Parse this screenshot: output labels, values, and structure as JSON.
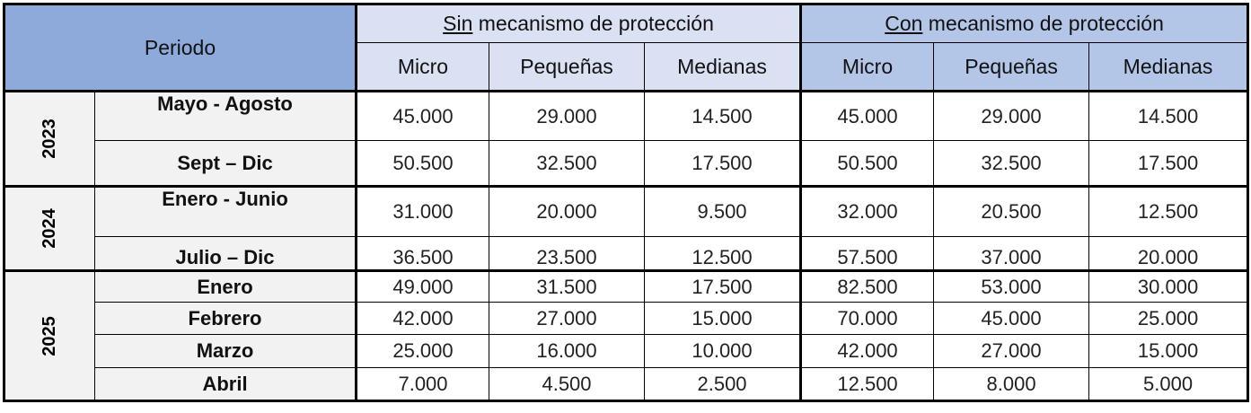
{
  "header": {
    "periodo": "Periodo",
    "sin_underlined": "Sin",
    "sin_rest": " mecanismo de protección",
    "con_underlined": "Con",
    "con_rest": " mecanismo de protección",
    "cols": [
      "Micro",
      "Pequeñas",
      "Medianas",
      "Micro",
      "Pequeñas",
      "Medianas"
    ]
  },
  "years": [
    {
      "year": "2023",
      "rows": [
        {
          "period": "Mayo - Agosto",
          "sin": [
            "45.000",
            "29.000",
            "14.500"
          ],
          "con": [
            "45.000",
            "29.000",
            "14.500"
          ]
        },
        {
          "period": "Sept – Dic",
          "sin": [
            "50.500",
            "32.500",
            "17.500"
          ],
          "con": [
            "50.500",
            "32.500",
            "17.500"
          ]
        }
      ]
    },
    {
      "year": "2024",
      "rows": [
        {
          "period": "Enero - Junio",
          "sin": [
            "31.000",
            "20.000",
            "9.500"
          ],
          "con": [
            "32.000",
            "20.500",
            "12.500"
          ]
        },
        {
          "period": "Julio – Dic",
          "sin": [
            "36.500",
            "23.500",
            "12.500"
          ],
          "con": [
            "57.500",
            "37.000",
            "20.000"
          ]
        }
      ]
    },
    {
      "year": "2025",
      "rows": [
        {
          "period": "Enero",
          "sin": [
            "49.000",
            "31.500",
            "17.500"
          ],
          "con": [
            "82.500",
            "53.000",
            "30.000"
          ]
        },
        {
          "period": "Febrero",
          "sin": [
            "42.000",
            "27.000",
            "15.000"
          ],
          "con": [
            "70.000",
            "45.000",
            "25.000"
          ]
        },
        {
          "period": "Marzo",
          "sin": [
            "25.000",
            "16.000",
            "10.000"
          ],
          "con": [
            "42.000",
            "27.000",
            "15.000"
          ]
        },
        {
          "period": "Abril",
          "sin": [
            "7.000",
            "4.500",
            "2.500"
          ],
          "con": [
            "12.500",
            "8.000",
            "5.000"
          ]
        }
      ]
    }
  ]
}
